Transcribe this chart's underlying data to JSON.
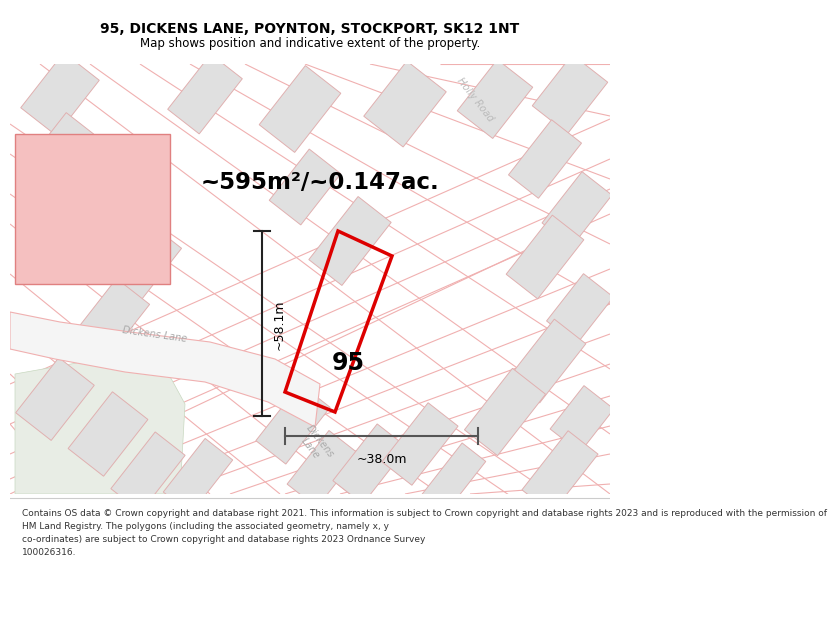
{
  "title_line1": "95, DICKENS LANE, POYNTON, STOCKPORT, SK12 1NT",
  "title_line2": "Map shows position and indicative extent of the property.",
  "area_text": "~595m²/~0.147ac.",
  "property_label": "95",
  "dim_vertical": "~58.1m",
  "dim_horizontal": "~38.0m",
  "copyright_text": "Contains OS data © Crown copyright and database right 2021. This information is subject to Crown copyright and database rights 2023 and is reproduced with the permission of\nHM Land Registry. The polygons (including the associated geometry, namely x, y\nco-ordinates) are subject to Crown copyright and database rights 2023 Ordnance Survey\n100026316.",
  "property_stroke": "#dd0000",
  "dim_color": "#444444",
  "title_color": "#000000",
  "road_line_color": "#f0b0b0",
  "building_fill": "#e0e0e0",
  "building_edge": "#e0b0b0",
  "pink_bldg_fill": "#f5c0c0",
  "pink_bldg_edge": "#e08080",
  "green_fill": "#e8ede5",
  "bg_color": "#ffffff"
}
